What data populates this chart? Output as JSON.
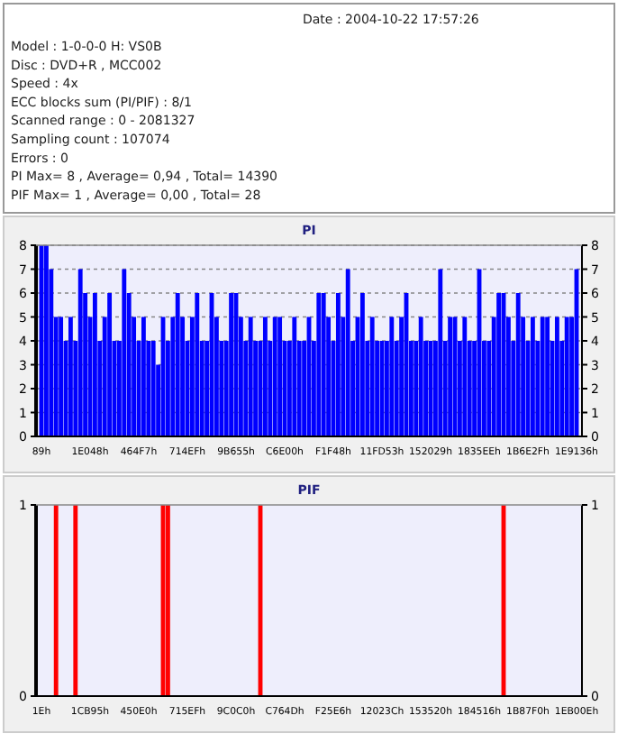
{
  "chart_data": [
    {
      "type": "other",
      "annotations": [
        "Date : 2004-10-22 17:57:26",
        "Model : 1-0-0-0 H: VS0B",
        "Disc : DVD+R , MCC002",
        "Speed : 4x",
        "ECC blocks sum (PI/PIF) : 8/1",
        "Scanned range : 0 - 2081327",
        "Sampling count : 107074",
        "Errors : 0",
        "PI Max= 8 , Average= 0,94 , Total= 14390",
        "PIF Max= 1 , Average= 0,00 , Total= 28"
      ]
    },
    {
      "type": "bar",
      "title": "PI",
      "categories": [
        "89h",
        null,
        null,
        null,
        null,
        null,
        null,
        null,
        null,
        null,
        "1E048h",
        null,
        null,
        null,
        null,
        null,
        null,
        null,
        null,
        null,
        "464F7h",
        null,
        null,
        null,
        null,
        null,
        null,
        null,
        null,
        null,
        "714EFh",
        null,
        null,
        null,
        null,
        null,
        null,
        null,
        null,
        null,
        "9B655h",
        null,
        null,
        null,
        null,
        null,
        null,
        null,
        null,
        null,
        "C6E00h",
        null,
        null,
        null,
        null,
        null,
        null,
        null,
        null,
        null,
        "F1F48h",
        null,
        null,
        null,
        null,
        null,
        null,
        null,
        null,
        null,
        "11FD53h",
        null,
        null,
        null,
        null,
        null,
        null,
        null,
        null,
        null,
        "152029h",
        null,
        null,
        null,
        null,
        null,
        null,
        null,
        null,
        null,
        "1835EEh",
        null,
        null,
        null,
        null,
        null,
        null,
        null,
        null,
        null,
        "1B6E2Fh",
        null,
        null,
        null,
        null,
        null,
        null,
        null,
        null,
        null,
        "1E9136h"
      ],
      "series": [
        {
          "color": "#0000ff",
          "values": [
            8,
            8,
            7,
            5,
            5,
            4,
            5,
            4,
            7,
            6,
            5,
            6,
            4,
            5,
            6,
            4,
            4,
            7,
            6,
            5,
            4,
            5,
            4,
            4,
            3,
            5,
            4,
            5,
            6,
            5,
            4,
            5,
            6,
            4,
            4,
            6,
            5,
            4,
            4,
            6,
            6,
            5,
            4,
            5,
            4,
            4,
            5,
            4,
            5,
            5,
            4,
            4,
            5,
            4,
            4,
            5,
            4,
            6,
            6,
            5,
            4,
            6,
            5,
            7,
            4,
            5,
            6,
            4,
            5,
            4,
            4,
            4,
            5,
            4,
            5,
            6,
            4,
            4,
            5,
            4,
            4,
            4,
            7,
            4,
            5,
            5,
            4,
            5,
            4,
            4,
            7,
            4,
            4,
            5,
            6,
            6,
            5,
            4,
            6,
            5,
            4,
            5,
            4,
            5,
            5,
            4,
            5,
            4,
            5,
            5,
            7
          ]
        }
      ],
      "ylim": [
        0,
        8
      ],
      "yticks": [
        0,
        1,
        2,
        3,
        4,
        5,
        6,
        7,
        8
      ],
      "y2lim": [
        0,
        8
      ],
      "y2ticks": [
        0,
        1,
        2,
        3,
        4,
        5,
        6,
        7,
        8
      ],
      "grid": "y"
    },
    {
      "type": "bar",
      "title": "PIF",
      "categories": [
        "1Eh",
        null,
        null,
        null,
        null,
        null,
        null,
        null,
        null,
        null,
        "1CB95h",
        null,
        null,
        null,
        null,
        null,
        null,
        null,
        null,
        null,
        "450E0h",
        null,
        null,
        null,
        null,
        null,
        null,
        null,
        null,
        null,
        "715EFh",
        null,
        null,
        null,
        null,
        null,
        null,
        null,
        null,
        null,
        "9C0C0h",
        null,
        null,
        null,
        null,
        null,
        null,
        null,
        null,
        null,
        "C764Dh",
        null,
        null,
        null,
        null,
        null,
        null,
        null,
        null,
        null,
        "F25E6h",
        null,
        null,
        null,
        null,
        null,
        null,
        null,
        null,
        null,
        "12023Ch",
        null,
        null,
        null,
        null,
        null,
        null,
        null,
        null,
        null,
        "153520h",
        null,
        null,
        null,
        null,
        null,
        null,
        null,
        null,
        null,
        "184516h",
        null,
        null,
        null,
        null,
        null,
        null,
        null,
        null,
        null,
        "1B87F0h",
        null,
        null,
        null,
        null,
        null,
        null,
        null,
        null,
        null,
        "1EB00Eh"
      ],
      "series": [
        {
          "color": "#ff0000",
          "values": [
            0,
            0,
            0,
            1,
            0,
            0,
            0,
            1,
            0,
            0,
            0,
            0,
            0,
            0,
            0,
            0,
            0,
            0,
            0,
            0,
            0,
            0,
            0,
            0,
            0,
            1,
            1,
            0,
            0,
            0,
            0,
            0,
            0,
            0,
            0,
            0,
            0,
            0,
            0,
            0,
            0,
            0,
            0,
            0,
            0,
            1,
            0,
            0,
            0,
            0,
            0,
            0,
            0,
            0,
            0,
            0,
            0,
            0,
            0,
            0,
            0,
            0,
            0,
            0,
            0,
            0,
            0,
            0,
            0,
            0,
            0,
            0,
            0,
            0,
            0,
            0,
            0,
            0,
            0,
            0,
            0,
            0,
            0,
            0,
            0,
            0,
            0,
            0,
            0,
            0,
            0,
            0,
            0,
            0,
            0,
            1,
            0,
            0,
            0,
            0,
            0,
            0,
            0,
            0,
            0,
            0,
            0,
            0,
            0,
            0,
            0
          ]
        }
      ],
      "ylim": [
        0,
        1
      ],
      "yticks": [
        0,
        1
      ],
      "y2lim": [
        0,
        1
      ],
      "y2ticks": [
        0,
        1
      ]
    }
  ]
}
